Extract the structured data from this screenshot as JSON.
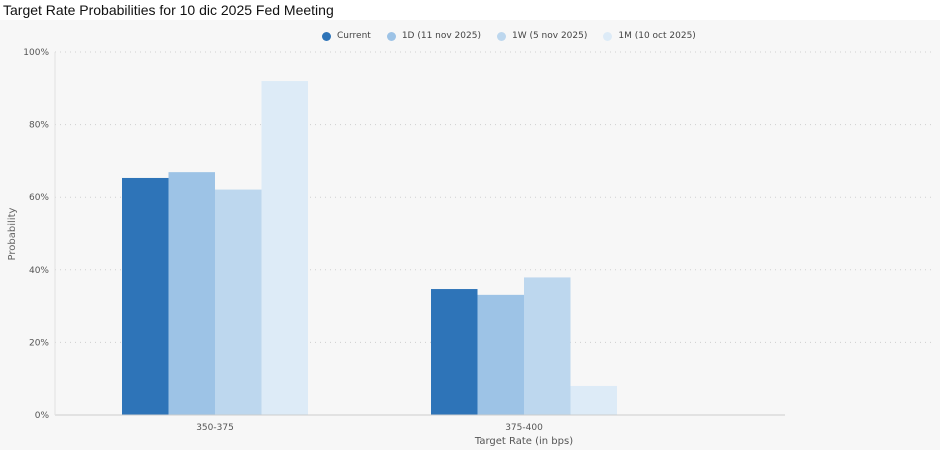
{
  "chart_data": {
    "type": "bar",
    "title": "Target Rate Probabilities for 10 dic 2025 Fed Meeting",
    "xlabel": "Target Rate (in bps)",
    "ylabel": "Probability",
    "ylim": [
      0,
      100
    ],
    "yticks": [
      "0%",
      "20%",
      "40%",
      "60%",
      "80%",
      "100%"
    ],
    "ytick_values": [
      0,
      20,
      40,
      60,
      80,
      100
    ],
    "categories": [
      "350-375",
      "375-400"
    ],
    "series": [
      {
        "name": "Current",
        "color": "#2e74b8",
        "values": [
          65.3,
          34.7
        ]
      },
      {
        "name": "1D (11 nov 2025)",
        "color": "#9dc3e6",
        "values": [
          66.9,
          33.1
        ]
      },
      {
        "name": "1W (5 nov 2025)",
        "color": "#bdd7ee",
        "values": [
          62.1,
          37.9
        ]
      },
      {
        "name": "1M (10 oct 2025)",
        "color": "#ddebf7",
        "values": [
          92.0,
          8.0
        ]
      }
    ],
    "legend_position": "top",
    "grid": "horizontal dotted"
  }
}
